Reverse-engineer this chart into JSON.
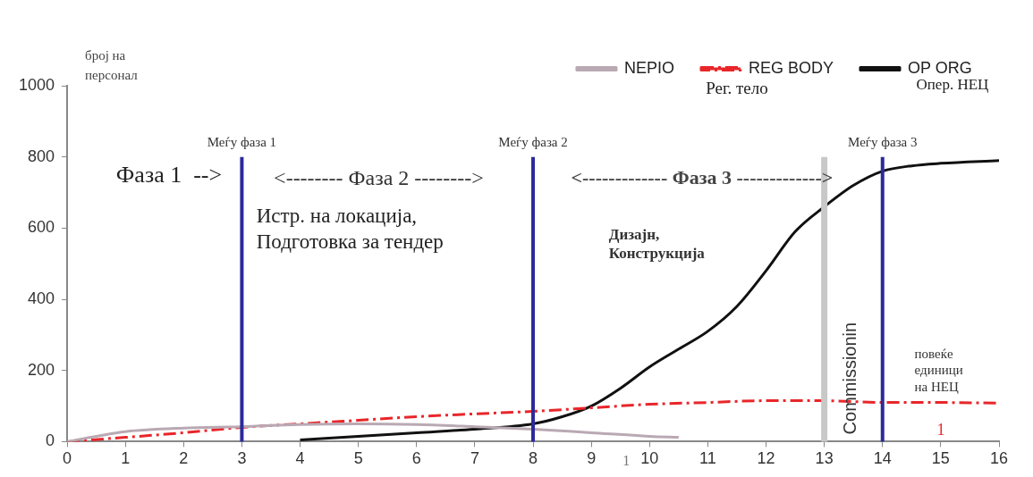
{
  "chart_data": {
    "type": "line",
    "ylabel": "број на персонал",
    "xlim": [
      0,
      16
    ],
    "xticks": [
      0,
      1,
      2,
      3,
      4,
      5,
      6,
      7,
      8,
      9,
      10,
      11,
      12,
      13,
      14,
      15,
      16
    ],
    "ylim": [
      0,
      1000
    ],
    "yticks": [
      0,
      200,
      400,
      600,
      800,
      1000
    ],
    "grid": false,
    "legend": "top right",
    "marker": "none",
    "series": [
      {
        "name": "NEPIO",
        "color": "#b9a9b3",
        "x": [
          0,
          0.5,
          1,
          2,
          3,
          4,
          5,
          6,
          7,
          8,
          9,
          10,
          10.5
        ],
        "values": [
          0,
          15,
          28,
          38,
          42,
          48,
          50,
          48,
          42,
          35,
          25,
          15,
          12
        ]
      },
      {
        "name": "REG BODY",
        "color": "#e8262a",
        "line_style": "dashed",
        "x": [
          0,
          1,
          2,
          3,
          4,
          5,
          6,
          7,
          8,
          9,
          10,
          11,
          12,
          13,
          14,
          15,
          16
        ],
        "values": [
          0,
          12,
          25,
          40,
          50,
          60,
          70,
          78,
          85,
          95,
          105,
          110,
          115,
          115,
          110,
          110,
          108
        ]
      },
      {
        "name": "OP ORG",
        "color": "#111111",
        "x": [
          4,
          5,
          6,
          7,
          8,
          8.5,
          9,
          9.5,
          10,
          10.5,
          11,
          11.5,
          12,
          12.5,
          13,
          13.5,
          14,
          14.5,
          15,
          16
        ],
        "values": [
          5,
          15,
          25,
          35,
          50,
          70,
          100,
          150,
          210,
          260,
          310,
          380,
          480,
          590,
          660,
          720,
          760,
          775,
          782,
          790
        ]
      }
    ],
    "ref_lines": [
      {
        "axis": "x",
        "value": 3,
        "label": "Меѓу фаза 1",
        "color": "#2b2b9b"
      },
      {
        "axis": "x",
        "value": 8,
        "label": "Меѓу фаза 2",
        "color": "#2b2b9b"
      },
      {
        "axis": "x",
        "value": 14,
        "label": "Меѓу фаза 3",
        "color": "#2b2b9b"
      },
      {
        "axis": "x",
        "value": 13,
        "label": "Commissionin",
        "color": "#c8c8c8"
      }
    ],
    "annotations": [
      "Фаза 1  -->",
      "<-------- Фаза 2 -------->",
      "<------------- Фаза 3 ------------->",
      "Истр. на локација,\nПодготовка за тендер",
      "Дизајн,\nКонструкција",
      "повеќе\nединици\nна НЕЦ",
      "Рег. тело",
      "Опер. НЕЦ",
      "1",
      "1"
    ]
  }
}
